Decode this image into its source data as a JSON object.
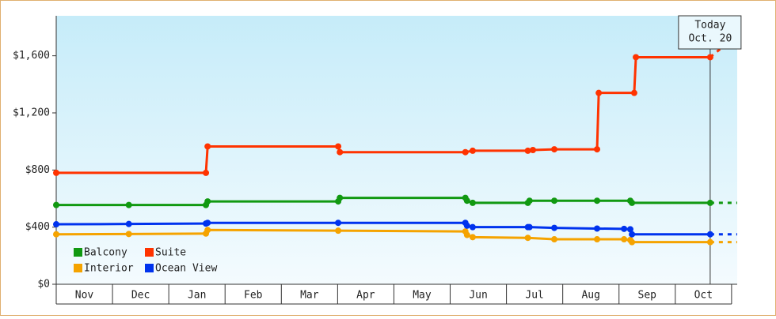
{
  "chart_data": {
    "type": "line",
    "xlim": [
      0,
      12.1
    ],
    "xticks": [
      {
        "value": 0.5,
        "label": "Nov"
      },
      {
        "value": 1.5,
        "label": "Dec"
      },
      {
        "value": 2.5,
        "label": "Jan"
      },
      {
        "value": 3.5,
        "label": "Feb"
      },
      {
        "value": 4.5,
        "label": "Mar"
      },
      {
        "value": 5.5,
        "label": "Apr"
      },
      {
        "value": 6.5,
        "label": "May"
      },
      {
        "value": 7.5,
        "label": "Jun"
      },
      {
        "value": 8.5,
        "label": "Jul"
      },
      {
        "value": 9.5,
        "label": "Aug"
      },
      {
        "value": 10.5,
        "label": "Sep"
      },
      {
        "value": 11.5,
        "label": "Oct"
      }
    ],
    "ylim": [
      0,
      1880
    ],
    "yticks": [
      {
        "value": 0,
        "label": "$0"
      },
      {
        "value": 400,
        "label": "$400"
      },
      {
        "value": 800,
        "label": "$800"
      },
      {
        "value": 1200,
        "label": "$1,200"
      },
      {
        "value": 1600,
        "label": "$1,600"
      }
    ],
    "series": [
      {
        "name": "Balcony",
        "color": "#119911",
        "x": [
          0,
          1.29,
          2.66,
          2.69,
          5.01,
          5.04,
          7.27,
          7.3,
          7.4,
          8.38,
          8.41,
          8.85,
          9.61,
          10.2,
          10.23,
          11.62
        ],
        "values": [
          555,
          555,
          555,
          580,
          580,
          605,
          605,
          585,
          570,
          570,
          585,
          585,
          585,
          585,
          570,
          570
        ]
      },
      {
        "name": "Suite",
        "color": "#ff3300",
        "x": [
          0,
          2.66,
          2.69,
          5.01,
          5.04,
          7.27,
          7.4,
          8.38,
          8.47,
          8.85,
          9.61,
          9.64,
          10.27,
          10.3,
          11.62
        ],
        "values": [
          780,
          780,
          965,
          965,
          925,
          925,
          935,
          935,
          940,
          945,
          945,
          1340,
          1340,
          1590,
          1590
        ]
      },
      {
        "name": "Interior",
        "color": "#f5a300",
        "x": [
          0,
          1.29,
          2.66,
          2.69,
          5.01,
          7.27,
          7.3,
          7.4,
          8.38,
          8.85,
          9.61,
          10.09,
          10.2,
          10.23,
          11.62
        ],
        "values": [
          350,
          352,
          355,
          380,
          375,
          370,
          345,
          330,
          325,
          315,
          315,
          315,
          310,
          295,
          295
        ]
      },
      {
        "name": "Ocean View",
        "color": "#0033ee",
        "x": [
          0,
          1.29,
          2.66,
          2.69,
          5.01,
          7.27,
          7.3,
          7.4,
          8.38,
          8.41,
          8.85,
          9.61,
          10.09,
          10.2,
          10.23,
          11.62
        ],
        "values": [
          420,
          422,
          425,
          430,
          430,
          430,
          410,
          400,
          400,
          400,
          395,
          390,
          388,
          385,
          350,
          350
        ]
      }
    ],
    "annotation": {
      "lines": [
        "Today",
        "Oct. 20"
      ],
      "x": 11.62
    }
  }
}
